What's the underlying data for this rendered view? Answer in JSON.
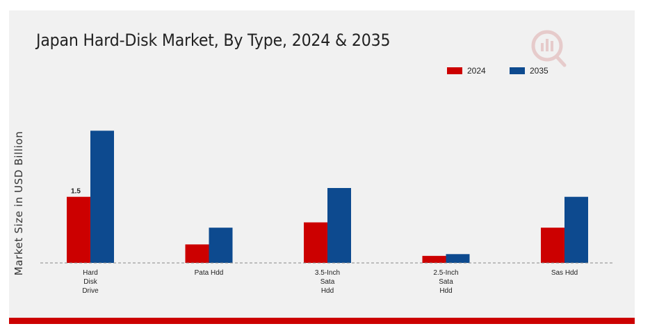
{
  "chart_data": {
    "type": "bar",
    "title": "Japan Hard-Disk Market, By Type, 2024 & 2035",
    "xlabel": "",
    "ylabel": "Market Size in USD Billion",
    "categories": [
      "Hard Disk Drive",
      "Pata Hdd",
      "3.5-Inch Sata Hdd",
      "2.5-Inch Sata Hdd",
      "Sas Hdd"
    ],
    "category_lines": [
      [
        "Hard",
        "Disk",
        "Drive"
      ],
      [
        "Pata Hdd"
      ],
      [
        "3.5-Inch",
        "Sata",
        "Hdd"
      ],
      [
        "2.5-Inch",
        "Sata",
        "Hdd"
      ],
      [
        "Sas Hdd"
      ]
    ],
    "series": [
      {
        "name": "2024",
        "color": "#cc0000",
        "values": [
          1.5,
          0.42,
          0.92,
          0.16,
          0.8
        ]
      },
      {
        "name": "2035",
        "color": "#0d4a8f",
        "values": [
          3.0,
          0.8,
          1.7,
          0.2,
          1.5
        ]
      }
    ],
    "data_labels": [
      {
        "series": 0,
        "index": 0,
        "text": "1.5"
      }
    ],
    "ylim": [
      0,
      3.4
    ],
    "grid": false,
    "legend_position": "top-right",
    "baseline": "dashed"
  },
  "colors": {
    "accent_bar": "#cc0000",
    "card_background": "#f1f1f1"
  }
}
